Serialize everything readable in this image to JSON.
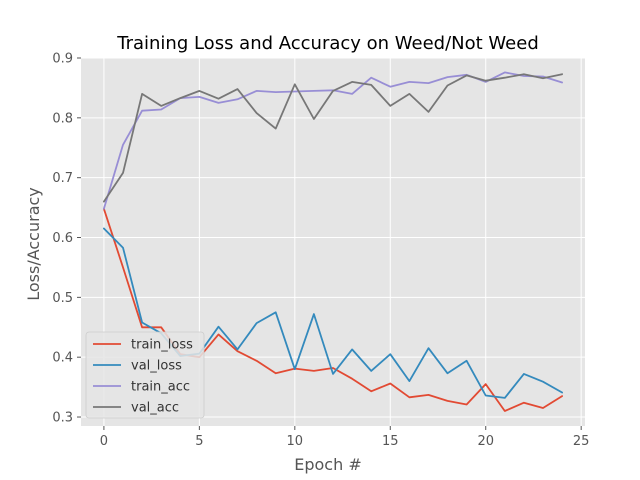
{
  "chart_data": {
    "type": "line",
    "title": "Training Loss and Accuracy on Weed/Not Weed",
    "xlabel": "Epoch #",
    "ylabel": "Loss/Accuracy",
    "xlim": [
      -1.2,
      25.2
    ],
    "ylim": [
      0.285,
      0.9
    ],
    "xticks": [
      0,
      5,
      10,
      15,
      20,
      25
    ],
    "xtick_labels": [
      "0",
      "5",
      "10",
      "15",
      "20",
      "25"
    ],
    "yticks": [
      0.3,
      0.4,
      0.5,
      0.6,
      0.7,
      0.8,
      0.9
    ],
    "ytick_labels": [
      "0.3",
      "0.4",
      "0.5",
      "0.6",
      "0.7",
      "0.8",
      "0.9"
    ],
    "grid": true,
    "legend_position": "lower-left",
    "style": {
      "plot_background": "#e5e5e5",
      "grid_color": "#ffffff"
    },
    "x": [
      0,
      1,
      2,
      3,
      4,
      5,
      6,
      7,
      8,
      9,
      10,
      11,
      12,
      13,
      14,
      15,
      16,
      17,
      18,
      19,
      20,
      21,
      22,
      23,
      24
    ],
    "series": [
      {
        "name": "train_loss",
        "color": "#e24a33",
        "values": [
          0.648,
          0.55,
          0.45,
          0.45,
          0.405,
          0.4,
          0.438,
          0.41,
          0.394,
          0.373,
          0.381,
          0.377,
          0.382,
          0.364,
          0.343,
          0.356,
          0.333,
          0.337,
          0.327,
          0.321,
          0.355,
          0.31,
          0.324,
          0.315,
          0.335
        ]
      },
      {
        "name": "val_loss",
        "color": "#348abd",
        "values": [
          0.615,
          0.583,
          0.458,
          0.44,
          0.402,
          0.406,
          0.451,
          0.413,
          0.457,
          0.475,
          0.38,
          0.472,
          0.372,
          0.413,
          0.377,
          0.405,
          0.36,
          0.415,
          0.373,
          0.394,
          0.336,
          0.332,
          0.372,
          0.359,
          0.341
        ]
      },
      {
        "name": "train_acc",
        "color": "#988ed5",
        "values": [
          0.648,
          0.755,
          0.812,
          0.814,
          0.833,
          0.835,
          0.825,
          0.831,
          0.845,
          0.843,
          0.844,
          0.845,
          0.846,
          0.84,
          0.867,
          0.852,
          0.86,
          0.858,
          0.868,
          0.872,
          0.86,
          0.876,
          0.87,
          0.869,
          0.859
        ]
      },
      {
        "name": "val_acc",
        "color": "#777777",
        "values": [
          0.66,
          0.708,
          0.84,
          0.82,
          0.833,
          0.845,
          0.832,
          0.848,
          0.808,
          0.782,
          0.856,
          0.798,
          0.845,
          0.86,
          0.855,
          0.82,
          0.84,
          0.81,
          0.854,
          0.871,
          0.862,
          0.867,
          0.873,
          0.866,
          0.873
        ]
      }
    ]
  }
}
